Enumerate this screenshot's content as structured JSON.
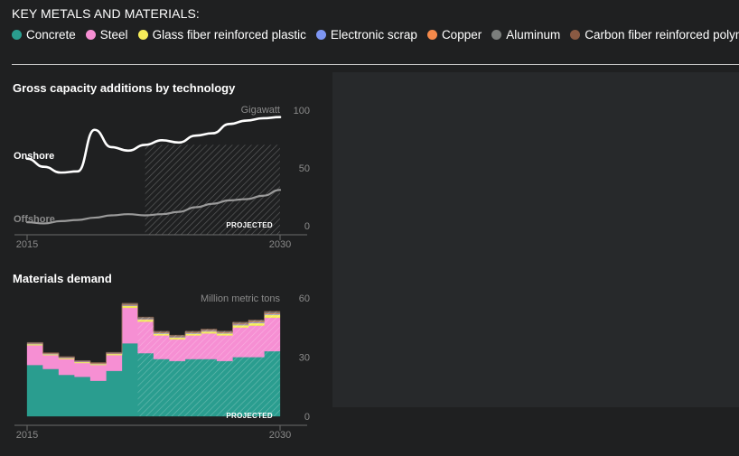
{
  "legend": {
    "title": "KEY METALS AND MATERIALS:",
    "items": [
      {
        "label": "Concrete",
        "color": "#2a9d8f"
      },
      {
        "label": "Steel",
        "color": "#f68fd3"
      },
      {
        "label": "Glass fiber reinforced plastic",
        "color": "#f8ee5a"
      },
      {
        "label": "Electronic scrap",
        "color": "#7d95f2"
      },
      {
        "label": "Copper",
        "color": "#f58a4b"
      },
      {
        "label": "Aluminum",
        "color": "#7b7e7c"
      },
      {
        "label": "Carbon fiber reinforced polymers",
        "color": "#8a5a43"
      }
    ]
  },
  "chart_data": [
    {
      "type": "line",
      "title": "Gross capacity additions by technology",
      "unit_label": "Gigawatt",
      "x": [
        2015,
        2016,
        2017,
        2018,
        2019,
        2020,
        2021,
        2022,
        2023,
        2024,
        2025,
        2026,
        2027,
        2028,
        2029,
        2030
      ],
      "ylim": [
        0,
        100
      ],
      "yticks": [
        0,
        50,
        100
      ],
      "xtick_labels": [
        "2015",
        "2030"
      ],
      "projected_from": 2022,
      "projected_label": "PROJECTED",
      "series": [
        {
          "name": "Onshore",
          "color": "#ffffff",
          "values": [
            58,
            51,
            46,
            47,
            83,
            68,
            65,
            70,
            74,
            72,
            78,
            80,
            88,
            91,
            93,
            94
          ]
        },
        {
          "name": "Offshore",
          "color": "#9a9a9a",
          "values": [
            3,
            2,
            4,
            5,
            7,
            9,
            10,
            9,
            10,
            12,
            16,
            19,
            22,
            23,
            26,
            31
          ]
        }
      ]
    },
    {
      "type": "area",
      "stacked": true,
      "title": "Materials demand",
      "unit_label": "Million metric tons",
      "x": [
        2015,
        2016,
        2017,
        2018,
        2019,
        2020,
        2021,
        2022,
        2023,
        2024,
        2025,
        2026,
        2027,
        2028,
        2029,
        2030
      ],
      "ylim": [
        0,
        60
      ],
      "yticks": [
        0,
        30,
        60
      ],
      "xtick_labels": [
        "2015",
        "2030"
      ],
      "projected_from": 2022,
      "projected_label": "PROJECTED",
      "series": [
        {
          "name": "Concrete",
          "color": "#2a9d8f",
          "values": [
            26,
            24,
            21,
            20,
            18,
            23,
            37,
            32,
            29,
            28,
            29,
            29,
            28,
            30,
            30,
            33
          ]
        },
        {
          "name": "Steel",
          "color": "#f68fd3",
          "values": [
            10,
            7,
            8,
            7,
            8,
            8,
            18,
            16,
            12,
            11,
            12,
            13,
            13,
            15,
            16,
            17
          ]
        },
        {
          "name": "Glass fiber reinforced plastic",
          "color": "#f8ee5a",
          "values": [
            0.6,
            0.5,
            0.5,
            0.5,
            0.5,
            0.6,
            1,
            1,
            0.9,
            0.9,
            0.9,
            1,
            1,
            1.2,
            1.3,
            1.5
          ]
        },
        {
          "name": "Electronic scrap",
          "color": "#7d95f2",
          "values": [
            0.2,
            0.2,
            0.2,
            0.2,
            0.2,
            0.2,
            0.3,
            0.3,
            0.3,
            0.3,
            0.3,
            0.3,
            0.3,
            0.4,
            0.4,
            0.4
          ]
        },
        {
          "name": "Copper",
          "color": "#f58a4b",
          "values": [
            0.2,
            0.2,
            0.2,
            0.2,
            0.2,
            0.2,
            0.3,
            0.3,
            0.3,
            0.3,
            0.3,
            0.3,
            0.3,
            0.4,
            0.4,
            0.4
          ]
        },
        {
          "name": "Aluminum",
          "color": "#7b7e7c",
          "values": [
            0.4,
            0.3,
            0.3,
            0.3,
            0.3,
            0.4,
            0.6,
            0.6,
            0.5,
            0.5,
            0.5,
            0.5,
            0.5,
            0.6,
            0.6,
            0.7
          ]
        },
        {
          "name": "Carbon fiber reinforced polymers",
          "color": "#8a5a43",
          "values": [
            0.1,
            0.1,
            0.1,
            0.1,
            0.1,
            0.1,
            0.2,
            0.2,
            0.2,
            0.2,
            0.2,
            0.2,
            0.2,
            0.2,
            0.2,
            0.3
          ]
        }
      ]
    }
  ]
}
